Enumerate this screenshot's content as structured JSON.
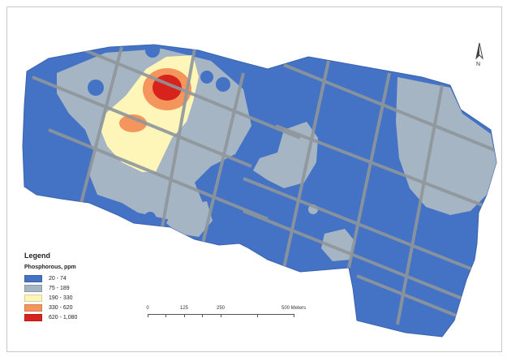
{
  "legend": {
    "title": "Legend",
    "subtitle": "Phosphorous, ppm",
    "classes": [
      {
        "label": "20 - 74",
        "color": "#4472c4"
      },
      {
        "label": "75 - 189",
        "color": "#a6b5c4"
      },
      {
        "label": "190 - 330",
        "color": "#fdf6b8"
      },
      {
        "label": "330 - 620",
        "color": "#f4955e"
      },
      {
        "label": "620 - 1,080",
        "color": "#d7231b"
      }
    ]
  },
  "scale_bar": {
    "labels": [
      "0",
      "125",
      "250",
      "500 Meters"
    ]
  },
  "north_arrow": {
    "label": "N"
  },
  "colors": {
    "low": "#4472c4",
    "medium_low": "#a6b5c4",
    "medium": "#fdf6b8",
    "high": "#f4955e",
    "very_high": "#d7231b",
    "road": "#8f969c"
  }
}
